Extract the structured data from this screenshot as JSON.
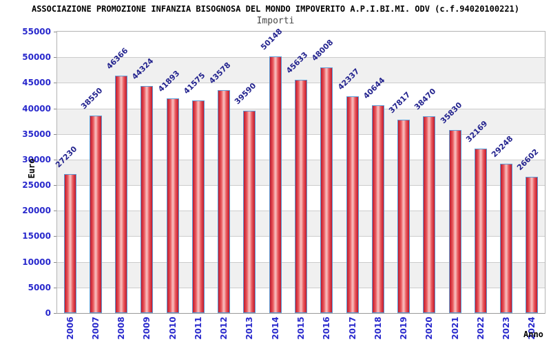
{
  "header": {
    "title": "ASSOCIAZIONE PROMOZIONE INFANZIA BISOGNOSA DEL MONDO IMPOVERITO A.P.I.BI.MI. ODV (c.f.94020100221)",
    "subtitle": "Importi"
  },
  "chart_data": {
    "type": "bar",
    "title": "ASSOCIAZIONE PROMOZIONE INFANZIA BISOGNOSA DEL MONDO IMPOVERITO A.P.I.BI.MI. ODV (c.f.94020100221)",
    "subtitle": "Importi",
    "categories": [
      "2006",
      "2007",
      "2008",
      "2009",
      "2010",
      "2011",
      "2012",
      "2013",
      "2014",
      "2015",
      "2016",
      "2017",
      "2018",
      "2019",
      "2020",
      "2021",
      "2022",
      "2023",
      "2024"
    ],
    "values": [
      27230,
      38550,
      46366,
      44324,
      41893,
      41575,
      43578,
      39590,
      50148,
      45633,
      48008,
      42337,
      40644,
      37817,
      38470,
      35830,
      32169,
      29248,
      26602
    ],
    "xlabel": "Anno",
    "ylabel": "Euro",
    "ylim": [
      0,
      55000
    ],
    "ytick_step": 5000,
    "grid": "horizontal-with-alternating-bands",
    "legend": "none",
    "value_labels": "rotated-45-above-bars",
    "xtick_rotation": -90
  },
  "colors": {
    "bar_gradient_edge": "#c2182b",
    "bar_gradient_mid": "#ea5a5e",
    "bar_gradient_center": "#f7b6b6",
    "bar_border": "#5b9bd5",
    "value_label": "#23238e",
    "axis_tick_label": "#2929cc",
    "band_gray": "#f0f0f0",
    "gridline": "#cccccc",
    "tick_mark": "#888888"
  }
}
